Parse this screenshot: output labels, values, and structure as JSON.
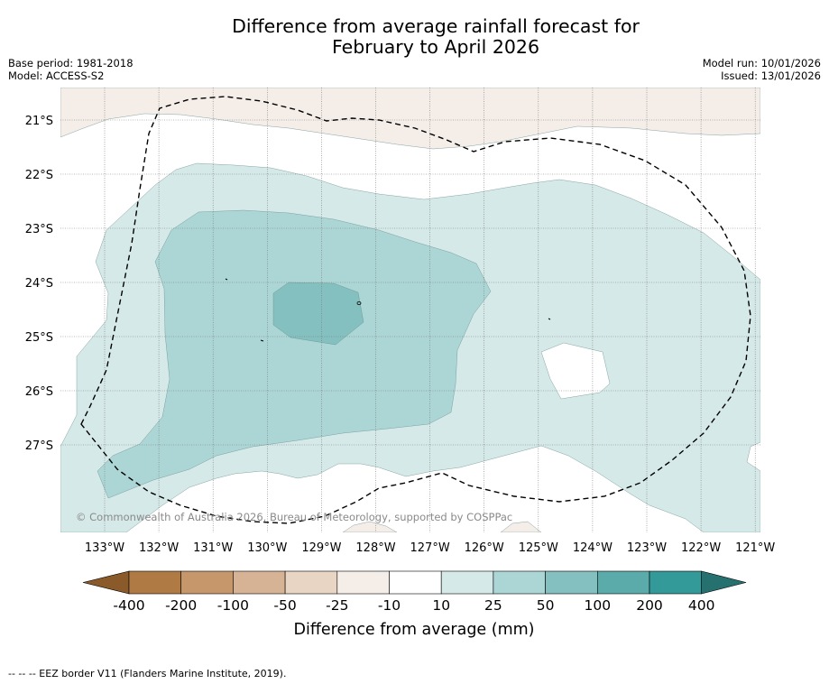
{
  "title": {
    "line1": "Difference from average rainfall forecast for",
    "line2": "February to April 2026"
  },
  "metadata": {
    "base_period": "Base period: 1981-2018",
    "model": "Model: ACCESS-S2",
    "model_run": "Model run: 10/01/2026",
    "issued": "Issued: 13/01/2026"
  },
  "map": {
    "latitudes": [
      "21°S",
      "22°S",
      "23°S",
      "24°S",
      "25°S",
      "26°S",
      "27°S"
    ],
    "longitudes": [
      "133°W",
      "132°W",
      "131°W",
      "130°W",
      "129°W",
      "128°W",
      "127°W",
      "126°W",
      "125°W",
      "124°W",
      "123°W",
      "122°W",
      "121°W"
    ],
    "copyright": "© Commonwealth of Australia 2026, Bureau of Meteorology, supported by COSPPac",
    "category_colors": {
      "dry_minus25_to_minus10": "#f4ede8",
      "neutral_minus10_to_10": "#ffffff",
      "wet_10_to_25": "#d5e9e8",
      "wet_25_to_50": "#acd6d5",
      "wet_50_to_100": "#83c0bf"
    },
    "eez_line_color": "#000000"
  },
  "colorbar": {
    "colors": [
      "#8b5a2b",
      "#b07a45",
      "#c5976b",
      "#d6b394",
      "#e8d5c4",
      "#f4ede8",
      "#ffffff",
      "#d5e9e8",
      "#acd6d5",
      "#83c0bf",
      "#5aabaa",
      "#339999",
      "#26716f"
    ],
    "tick_labels": [
      "-400",
      "-200",
      "-100",
      "-50",
      "-25",
      "-10",
      "10",
      "25",
      "50",
      "100",
      "200",
      "400"
    ],
    "label": "Difference from average (mm)"
  },
  "footnote": "--  --  -- EEZ border V11 (Flanders Marine Institute, 2019)."
}
